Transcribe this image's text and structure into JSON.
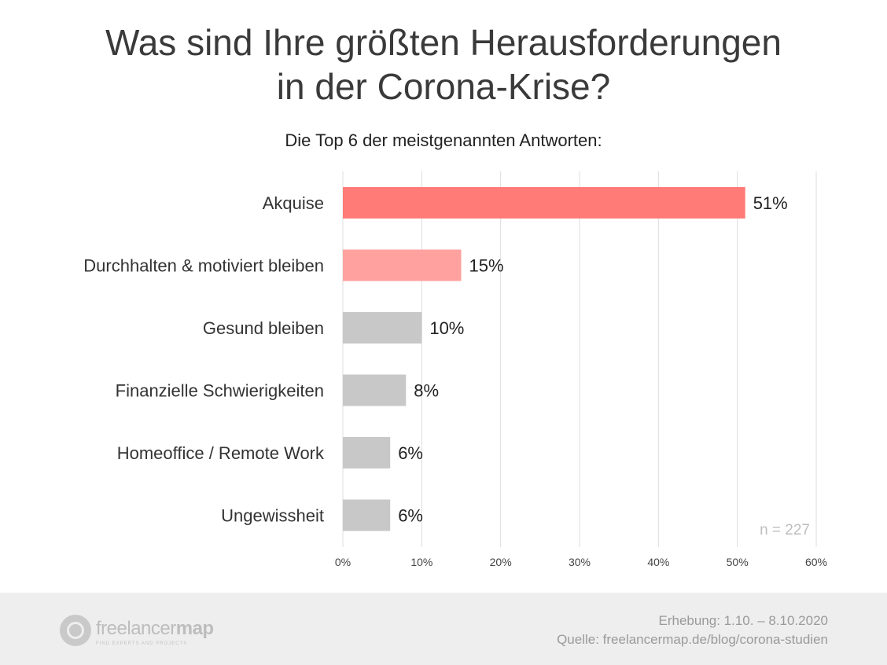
{
  "header": {
    "title_line1": "Was sind Ihre größten Herausforderungen",
    "title_line2": "in der Corona-Krise?",
    "subtitle": "Die Top 6 der meistgenannten Antworten:"
  },
  "chart_data": {
    "type": "bar",
    "orientation": "horizontal",
    "categories": [
      "Akquise",
      "Durchhalten & motiviert bleiben",
      "Gesund bleiben",
      "Finanzielle Schwierigkeiten",
      "Homeoffice / Remote Work",
      "Ungewissheit"
    ],
    "values": [
      51,
      15,
      10,
      8,
      6,
      6
    ],
    "value_labels": [
      "51%",
      "15%",
      "10%",
      "8%",
      "6%",
      "6%"
    ],
    "bar_colors": [
      "#ff7b78",
      "#ffa19e",
      "#c8c8c8",
      "#c8c8c8",
      "#c8c8c8",
      "#c8c8c8"
    ],
    "xlim": [
      0,
      60
    ],
    "x_ticks": [
      "0%",
      "10%",
      "20%",
      "30%",
      "40%",
      "50%",
      "60%"
    ],
    "grid": true,
    "annotation": "n = 227"
  },
  "footer": {
    "logo_word_light": "freelancer",
    "logo_word_bold": "map",
    "logo_tagline": "FIND EXPERTS AND PROJECTS",
    "survey_period": "Erhebung: 1.10. – 8.10.2020",
    "source": "Quelle: freelancermap.de/blog/corona-studien"
  },
  "colors": {
    "highlight": "#ff7b78",
    "highlight_light": "#ffa19e",
    "neutral": "#c8c8c8",
    "footer_bg": "#eeeeee"
  }
}
